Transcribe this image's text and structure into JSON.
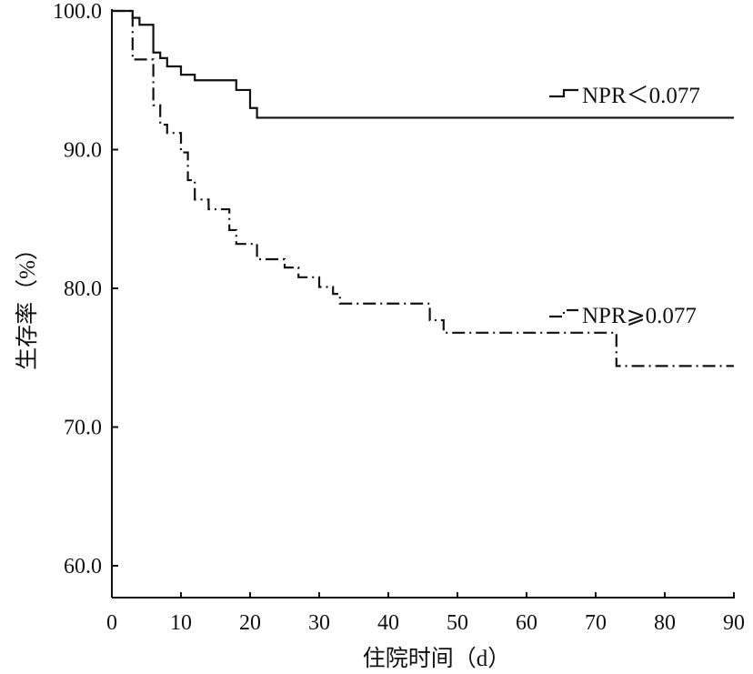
{
  "chart_data": {
    "type": "line",
    "subtype": "kaplan-meier step",
    "title": "",
    "xlabel": "住院时间（d）",
    "ylabel": "生存率（%）",
    "xlim": [
      0,
      90
    ],
    "ylim": [
      60,
      100
    ],
    "xticks": [
      "0",
      "10",
      "20",
      "30",
      "40",
      "50",
      "60",
      "70",
      "80",
      "90"
    ],
    "yticks": [
      "60.0",
      "70.0",
      "80.0",
      "90.0",
      "100.0"
    ],
    "grid": false,
    "series": [
      {
        "name": "NPR＜0.077",
        "style": "solid",
        "x": [
          0,
          3,
          4,
          6,
          7,
          8,
          10,
          12,
          18,
          20,
          21,
          90
        ],
        "y": [
          100,
          99.5,
          99.0,
          97.0,
          96.6,
          96.0,
          95.4,
          95.0,
          94.3,
          93.0,
          92.3,
          92.3
        ]
      },
      {
        "name": "NPR⩾0.077",
        "style": "dash-dot",
        "x": [
          0,
          3,
          6,
          7,
          8,
          10,
          11,
          12,
          14,
          17,
          18,
          21,
          25,
          27,
          30,
          32,
          33,
          46,
          48,
          73,
          90
        ],
        "y": [
          100,
          96.5,
          93.2,
          91.8,
          91.2,
          89.8,
          87.8,
          86.4,
          85.7,
          84.2,
          83.2,
          82.1,
          81.5,
          80.8,
          80.1,
          79.6,
          78.9,
          77.7,
          76.8,
          74.4,
          74.4
        ]
      }
    ],
    "legend": "inline labels at right end of curves"
  }
}
